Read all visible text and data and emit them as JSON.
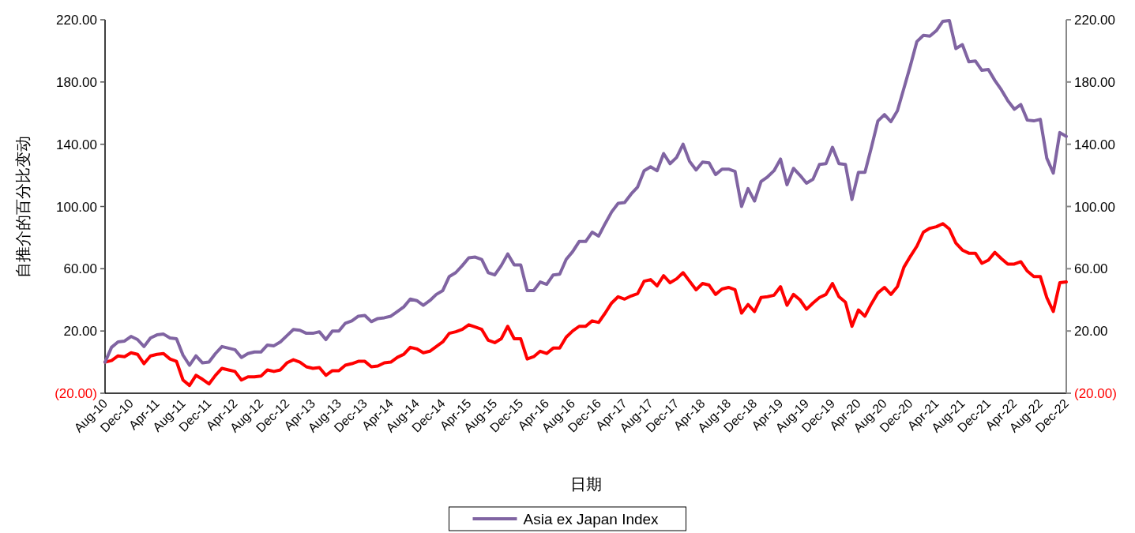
{
  "chart_data": {
    "type": "line",
    "ylabel": "自推介的百分比变动",
    "xlabel": "日期",
    "x": [
      "2010-08",
      "2010-09",
      "2010-10",
      "2010-11",
      "2010-12",
      "2011-01",
      "2011-02",
      "2011-03",
      "2011-04",
      "2011-05",
      "2011-06",
      "2011-07",
      "2011-08",
      "2011-09",
      "2011-10",
      "2011-11",
      "2011-12",
      "2012-01",
      "2012-02",
      "2012-03",
      "2012-04",
      "2012-05",
      "2012-06",
      "2012-07",
      "2012-08",
      "2012-09",
      "2012-10",
      "2012-11",
      "2012-12",
      "2013-01",
      "2013-02",
      "2013-03",
      "2013-04",
      "2013-05",
      "2013-06",
      "2013-07",
      "2013-08",
      "2013-09",
      "2013-10",
      "2013-11",
      "2013-12",
      "2014-01",
      "2014-02",
      "2014-03",
      "2014-04",
      "2014-05",
      "2014-06",
      "2014-07",
      "2014-08",
      "2014-09",
      "2014-10",
      "2014-11",
      "2014-12",
      "2015-01",
      "2015-02",
      "2015-03",
      "2015-04",
      "2015-05",
      "2015-06",
      "2015-07",
      "2015-08",
      "2015-09",
      "2015-10",
      "2015-11",
      "2015-12",
      "2016-01",
      "2016-02",
      "2016-03",
      "2016-04",
      "2016-05",
      "2016-06",
      "2016-07",
      "2016-08",
      "2016-09",
      "2016-10",
      "2016-11",
      "2016-12",
      "2017-01",
      "2017-02",
      "2017-03",
      "2017-04",
      "2017-05",
      "2017-06",
      "2017-07",
      "2017-08",
      "2017-09",
      "2017-10",
      "2017-11",
      "2017-12",
      "2018-01",
      "2018-02",
      "2018-03",
      "2018-04",
      "2018-05",
      "2018-06",
      "2018-07",
      "2018-08",
      "2018-09",
      "2018-10",
      "2018-11",
      "2018-12",
      "2019-01",
      "2019-02",
      "2019-03",
      "2019-04",
      "2019-05",
      "2019-06",
      "2019-07",
      "2019-08",
      "2019-09",
      "2019-10",
      "2019-11",
      "2019-12",
      "2020-01",
      "2020-02",
      "2020-03",
      "2020-04",
      "2020-05",
      "2020-06",
      "2020-07",
      "2020-08",
      "2020-09",
      "2020-10",
      "2020-11",
      "2020-12",
      "2021-01",
      "2021-02",
      "2021-03",
      "2021-04",
      "2021-05",
      "2021-06",
      "2021-07",
      "2021-08",
      "2021-09",
      "2021-10",
      "2021-11",
      "2021-12",
      "2022-01",
      "2022-02",
      "2022-03",
      "2022-04",
      "2022-05",
      "2022-06",
      "2022-07",
      "2022-08",
      "2022-09",
      "2022-10",
      "2022-11",
      "2022-12"
    ],
    "series": [
      {
        "color": "#ff0000",
        "values": [
          0,
          1,
          4,
          3.5,
          6,
          5,
          -1,
          4,
          5,
          5.5,
          2,
          0.5,
          -11.5,
          -15,
          -8.5,
          -11,
          -14,
          -8.5,
          -4,
          -5,
          -6,
          -11.5,
          -9.5,
          -9.5,
          -9,
          -5,
          -6,
          -5,
          -0.5,
          1.5,
          0,
          -3,
          -4,
          -3.5,
          -8.5,
          -5.5,
          -5.5,
          -2,
          -1,
          0.5,
          0.5,
          -3,
          -2.5,
          -0.5,
          0,
          3,
          5,
          9.5,
          8.5,
          6,
          7,
          10,
          13,
          18.5,
          19.5,
          21,
          24,
          22.5,
          21,
          14,
          12.5,
          15,
          23,
          15,
          15,
          2,
          3.5,
          7,
          5.5,
          9,
          9,
          16,
          20,
          23,
          23,
          26.5,
          25.5,
          31.5,
          38,
          42,
          40.5,
          42.5,
          44,
          52,
          53,
          49,
          55.5,
          51,
          53.5,
          57.5,
          52,
          46.5,
          50.5,
          49.5,
          43.5,
          47,
          48,
          46.5,
          31.5,
          37,
          32.5,
          41.5,
          42,
          43,
          48.5,
          36.5,
          43.5,
          40,
          34,
          38,
          41.5,
          43.5,
          50.5,
          42,
          38.5,
          23,
          33.5,
          29.5,
          37.5,
          44.5,
          48,
          43.5,
          48.5,
          61,
          68,
          74.5,
          83.5,
          86,
          87,
          89,
          85.5,
          76.5,
          72,
          70,
          70,
          63.5,
          65.5,
          70.5,
          66.5,
          63,
          63,
          64.5,
          58.5,
          55,
          55,
          41.5,
          32.5,
          51,
          51.5
        ]
      },
      {
        "name": "Asia ex Japan Index",
        "color": "#8064a2",
        "values": [
          0,
          9.5,
          13,
          13.5,
          16.5,
          14.5,
          10,
          15.5,
          17.5,
          18,
          15.5,
          15,
          4.5,
          -2,
          4,
          -0.5,
          0,
          5.5,
          10,
          9,
          8,
          3,
          5.5,
          6.5,
          6.5,
          11,
          10.5,
          13,
          17,
          21,
          20.5,
          18.5,
          18.5,
          19.5,
          14.5,
          20,
          20,
          25,
          26.5,
          29.5,
          30,
          26,
          28,
          28.5,
          29.5,
          32.5,
          35.5,
          40.5,
          39.5,
          36.5,
          39.5,
          43.5,
          46,
          55,
          57.5,
          62,
          67,
          67.5,
          66,
          57.5,
          56,
          62,
          69.5,
          62.5,
          62.5,
          46,
          46,
          51.5,
          50,
          56,
          56.5,
          66,
          71,
          77.5,
          77.5,
          83.5,
          81,
          89,
          96.5,
          102,
          102.5,
          108,
          112.5,
          123,
          125.5,
          123,
          134,
          127.5,
          131.5,
          140,
          129,
          123.5,
          128.5,
          128,
          120.5,
          124,
          124,
          122.5,
          100,
          111.5,
          103.5,
          116,
          119,
          123,
          130.5,
          114,
          124.5,
          120,
          115,
          117.5,
          127,
          127.5,
          138,
          127.5,
          127,
          104.5,
          122,
          122,
          138,
          155,
          159,
          154.5,
          161.5,
          176,
          190.5,
          206,
          210,
          209.5,
          213,
          219,
          219.5,
          201.5,
          204,
          193,
          193.5,
          187.5,
          188,
          181,
          175,
          168,
          162.5,
          165.5,
          155.5,
          155,
          156,
          131,
          121.5,
          147.5,
          145
        ]
      }
    ],
    "xlim": [
      "2010-08",
      "2022-12"
    ],
    "xticks": [
      {
        "value": "2010-08",
        "label": "Aug-10"
      },
      {
        "value": "2010-12",
        "label": "Dec-10"
      },
      {
        "value": "2011-04",
        "label": "Apr-11"
      },
      {
        "value": "2011-08",
        "label": "Aug-11"
      },
      {
        "value": "2011-12",
        "label": "Dec-11"
      },
      {
        "value": "2012-04",
        "label": "Apr-12"
      },
      {
        "value": "2012-08",
        "label": "Aug-12"
      },
      {
        "value": "2012-12",
        "label": "Dec-12"
      },
      {
        "value": "2013-04",
        "label": "Apr-13"
      },
      {
        "value": "2013-08",
        "label": "Aug-13"
      },
      {
        "value": "2013-12",
        "label": "Dec-13"
      },
      {
        "value": "2014-04",
        "label": "Apr-14"
      },
      {
        "value": "2014-08",
        "label": "Aug-14"
      },
      {
        "value": "2014-12",
        "label": "Dec-14"
      },
      {
        "value": "2015-04",
        "label": "Apr-15"
      },
      {
        "value": "2015-08",
        "label": "Aug-15"
      },
      {
        "value": "2015-12",
        "label": "Dec-15"
      },
      {
        "value": "2016-04",
        "label": "Apr-16"
      },
      {
        "value": "2016-08",
        "label": "Aug-16"
      },
      {
        "value": "2016-12",
        "label": "Dec-16"
      },
      {
        "value": "2017-04",
        "label": "Apr-17"
      },
      {
        "value": "2017-08",
        "label": "Aug-17"
      },
      {
        "value": "2017-12",
        "label": "Dec-17"
      },
      {
        "value": "2018-04",
        "label": "Apr-18"
      },
      {
        "value": "2018-08",
        "label": "Aug-18"
      },
      {
        "value": "2018-12",
        "label": "Dec-18"
      },
      {
        "value": "2019-04",
        "label": "Apr-19"
      },
      {
        "value": "2019-08",
        "label": "Aug-19"
      },
      {
        "value": "2019-12",
        "label": "Dec-19"
      },
      {
        "value": "2020-04",
        "label": "Apr-20"
      },
      {
        "value": "2020-08",
        "label": "Aug-20"
      },
      {
        "value": "2020-12",
        "label": "Dec-20"
      },
      {
        "value": "2021-04",
        "label": "Apr-21"
      },
      {
        "value": "2021-08",
        "label": "Aug-21"
      },
      {
        "value": "2021-12",
        "label": "Dec-21"
      },
      {
        "value": "2022-04",
        "label": "Apr-22"
      },
      {
        "value": "2022-08",
        "label": "Aug-22"
      },
      {
        "value": "2022-12",
        "label": "Dec-22"
      }
    ],
    "ylim": [
      -20,
      220
    ],
    "yticks": [
      {
        "value": -20,
        "label": "(20.00)"
      },
      {
        "value": 20,
        "label": "20.00"
      },
      {
        "value": 60,
        "label": "60.00"
      },
      {
        "value": 100,
        "label": "100.00"
      },
      {
        "value": 140,
        "label": "140.00"
      },
      {
        "value": 180,
        "label": "180.00"
      },
      {
        "value": 220,
        "label": "220.00"
      }
    ],
    "y2lim": [
      -20,
      220
    ],
    "y2ticks": [
      {
        "value": -20,
        "label": "(20.00)"
      },
      {
        "value": 20,
        "label": "20.00"
      },
      {
        "value": 60,
        "label": "60.00"
      },
      {
        "value": 100,
        "label": "100.00"
      },
      {
        "value": 140,
        "label": "140.00"
      },
      {
        "value": 180,
        "label": "180.00"
      },
      {
        "value": 220,
        "label": "220.00"
      }
    ],
    "legend": "bottom"
  }
}
